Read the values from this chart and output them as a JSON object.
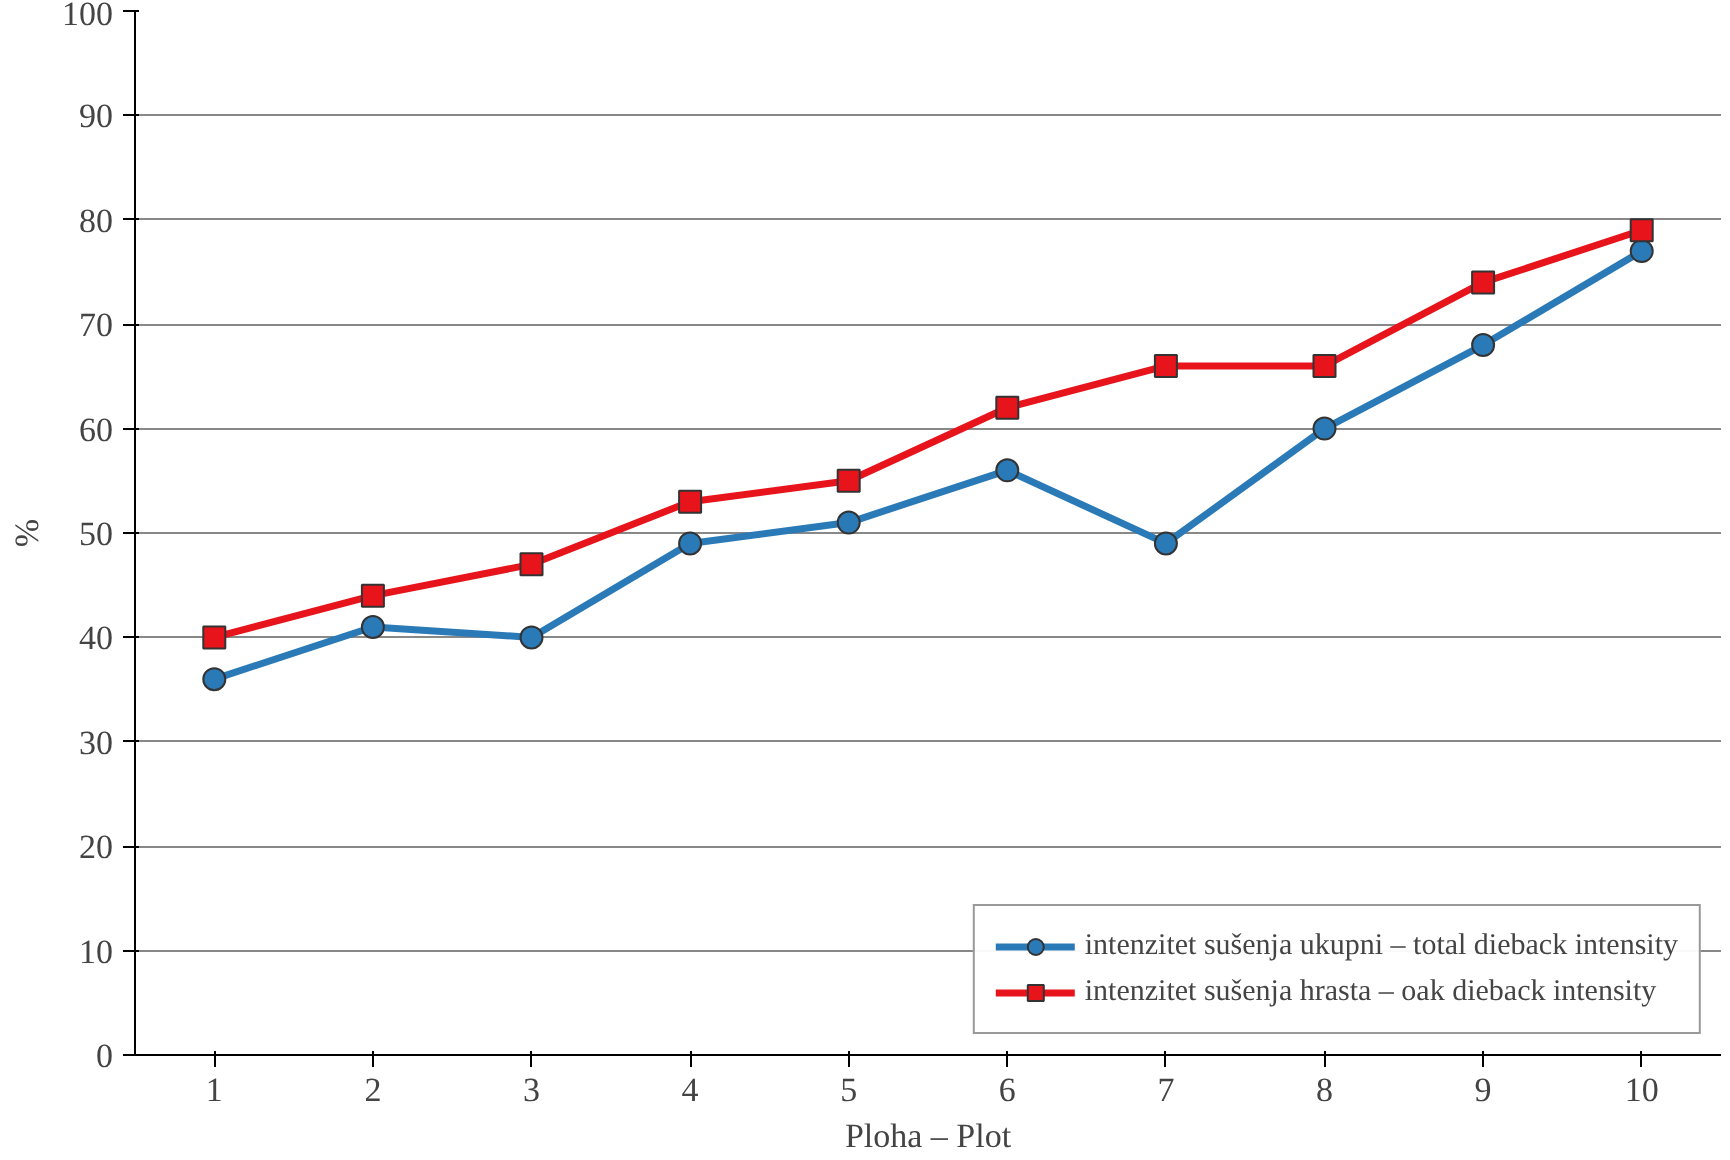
{
  "chart_data": {
    "type": "line",
    "xlabel": "Ploha – Plot",
    "ylabel": "%",
    "categories": [
      "1",
      "2",
      "3",
      "4",
      "5",
      "6",
      "7",
      "8",
      "9",
      "10"
    ],
    "series": [
      {
        "name": "intenzitet sušenja ukupni – total dieback intensity",
        "color": "#2a7ab8",
        "marker": "circle",
        "values": [
          36,
          41,
          40,
          49,
          51,
          56,
          49,
          60,
          68,
          77
        ]
      },
      {
        "name": "intenzitet sušenja hrasta – oak dieback intensity",
        "color": "#e8141c",
        "marker": "square",
        "values": [
          40,
          44,
          47,
          53,
          55,
          62,
          66,
          66,
          74,
          79
        ]
      }
    ],
    "ylim": [
      0,
      100
    ],
    "yticks": [
      0,
      10,
      20,
      30,
      40,
      50,
      60,
      70,
      80,
      90,
      100
    ],
    "grid": "y",
    "legend": "bottom right",
    "line_style": "solid"
  }
}
